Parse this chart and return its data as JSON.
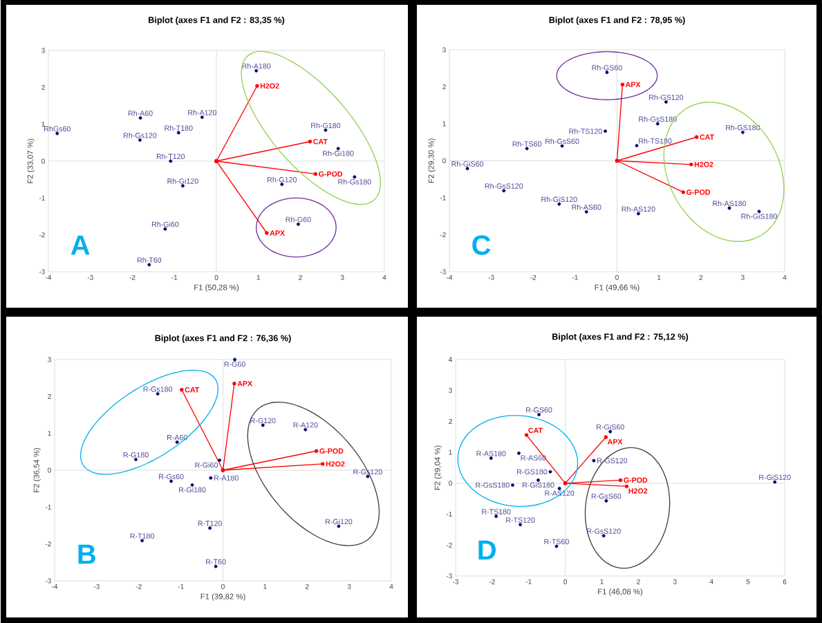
{
  "chart_data": [
    {
      "type": "scatter",
      "title": "Biplot (axes F1 and F2 : 83,35 %)",
      "xlabel": "F1 (50,28 %)",
      "ylabel": "F2 (33,07 %)",
      "annotations": [
        "A"
      ],
      "xlim": [
        -4,
        4
      ],
      "ylim": [
        -3,
        3
      ],
      "xticks": [
        -4,
        -3,
        -2,
        -1,
        0,
        1,
        2,
        3,
        4
      ],
      "yticks": [
        -3,
        -2,
        -1,
        0,
        1,
        2,
        3
      ],
      "marker": "circle",
      "series": [
        {
          "type": "scatter",
          "color": "#000066",
          "x": [
            -3.79,
            -1.81,
            -1.82,
            -0.34,
            -0.9,
            -1.09,
            -0.8,
            -1.22,
            -1.6,
            0.95,
            2.6,
            2.9,
            3.29,
            1.56,
            1.95
          ],
          "values": [
            0.75,
            1.17,
            0.57,
            1.19,
            0.77,
            0.0,
            -0.67,
            -1.84,
            -2.81,
            2.45,
            0.84,
            0.34,
            -0.43,
            -0.63,
            -1.71
          ],
          "value_labels": [
            "RhGs60",
            "Rh-A60",
            "Rh-Gs120",
            "Rh-A120",
            "Rh-T180",
            "Rh-T120",
            "Rh-Gi120",
            "Rh-Gi60",
            "Rh-T60",
            "Rh-A180",
            "Rh-G180",
            "Rh-Gi180",
            "Rh-Gs180",
            "Rh-G120",
            "Rh-G60"
          ]
        },
        {
          "type": "line",
          "color": "#ff0000",
          "x": [
            0,
            0.97
          ],
          "values": [
            0,
            2.04
          ],
          "value_labels": [
            null,
            "H2O2"
          ]
        },
        {
          "type": "line",
          "color": "#ff0000",
          "x": [
            0,
            2.23
          ],
          "values": [
            0,
            0.53
          ],
          "value_labels": [
            null,
            "CAT"
          ]
        },
        {
          "type": "line",
          "color": "#ff0000",
          "x": [
            0,
            2.36
          ],
          "values": [
            0,
            -0.35
          ],
          "value_labels": [
            null,
            "G-POD"
          ]
        },
        {
          "type": "line",
          "color": "#ff0000",
          "x": [
            0,
            1.2
          ],
          "values": [
            0,
            -1.95
          ],
          "value_labels": [
            null,
            "APX"
          ]
        }
      ]
    },
    {
      "type": "scatter",
      "title": "Biplot (axes F1 and F2 : 78,95 %)",
      "xlabel": "F1 (49,66 %)",
      "ylabel": "F2 (29,30 %)",
      "annotations": [
        "C"
      ],
      "xlim": [
        -4,
        4
      ],
      "ylim": [
        -3,
        3
      ],
      "xticks": [
        -4,
        -3,
        -2,
        -1,
        0,
        1,
        2,
        3,
        4
      ],
      "yticks": [
        -3,
        -2,
        -1,
        0,
        1,
        2,
        3
      ],
      "marker": "circle",
      "series": [
        {
          "type": "scatter",
          "color": "#000066",
          "x": [
            -0.24,
            1.17,
            -0.28,
            0.97,
            0.47,
            3.0,
            -1.31,
            -2.15,
            -3.57,
            -2.7,
            -1.38,
            -0.73,
            0.51,
            2.68,
            3.39
          ],
          "values": [
            2.39,
            1.59,
            0.8,
            1.0,
            0.41,
            0.77,
            0.4,
            0.33,
            -0.21,
            -0.81,
            -1.17,
            -1.38,
            -1.43,
            -1.28,
            -1.37
          ],
          "value_labels": [
            "Rh-GS60",
            "Rh-GS120",
            "Rh-TS120",
            "Rh-GsS180",
            "Rh-TS180",
            "Rh-GS180",
            "Rh-GsS60",
            "Rh-TS60",
            "Rh-GiS60",
            "Rh-GsS120",
            "Rh-GiS120",
            "Rh-AS60",
            "Rh-AS120",
            "Rh-AS180",
            "Rh-GiS180"
          ]
        },
        {
          "type": "line",
          "color": "#ff0000",
          "x": [
            0,
            0.13
          ],
          "values": [
            0,
            2.06
          ],
          "value_labels": [
            null,
            "APX"
          ]
        },
        {
          "type": "line",
          "color": "#ff0000",
          "x": [
            0,
            1.9
          ],
          "values": [
            0,
            0.64
          ],
          "value_labels": [
            null,
            "CAT"
          ]
        },
        {
          "type": "line",
          "color": "#ff0000",
          "x": [
            0,
            1.77
          ],
          "values": [
            0,
            -0.1
          ],
          "value_labels": [
            null,
            "H2O2"
          ]
        },
        {
          "type": "line",
          "color": "#ff0000",
          "x": [
            0,
            1.58
          ],
          "values": [
            0,
            -0.85
          ],
          "value_labels": [
            null,
            "G-POD"
          ]
        }
      ]
    },
    {
      "type": "scatter",
      "title": "Biplot (axes F1 and F2 : 76,36 %)",
      "xlabel": "F1 (39,82 %)",
      "ylabel": "F2 (36,54 %)",
      "annotations": [
        "B"
      ],
      "xlim": [
        -4,
        4
      ],
      "ylim": [
        -3,
        3
      ],
      "xticks": [
        -4,
        -3,
        -2,
        -1,
        0,
        1,
        2,
        3,
        4
      ],
      "yticks": [
        -3,
        -2,
        -1,
        0,
        1,
        2,
        3
      ],
      "marker": "circle",
      "series": [
        {
          "type": "scatter",
          "color": "#000066",
          "x": [
            0.28,
            -1.55,
            -1.09,
            -2.07,
            -0.08,
            -1.23,
            -0.73,
            -0.29,
            0.95,
            1.96,
            3.44,
            2.75,
            -0.31,
            -1.92,
            -0.17
          ],
          "values": [
            3.0,
            2.07,
            0.76,
            0.29,
            0.27,
            -0.3,
            -0.4,
            -0.21,
            1.22,
            1.1,
            -0.17,
            -1.52,
            -1.57,
            -1.91,
            -2.61
          ],
          "value_labels": [
            "R-G60",
            "R-Gs180",
            "R-A60",
            "R-G180",
            "R-Gi60",
            "R-Gs60",
            "R-Gi180",
            "R-A180",
            "R-G120",
            "R-A120",
            "R-Gs120",
            "R-Gi120",
            "R-T120",
            "R-T180",
            "R-T60"
          ]
        },
        {
          "type": "line",
          "color": "#ff0000",
          "x": [
            0,
            -0.98
          ],
          "values": [
            0,
            2.18
          ],
          "value_labels": [
            null,
            "CAT"
          ]
        },
        {
          "type": "line",
          "color": "#ff0000",
          "x": [
            0,
            0.27
          ],
          "values": [
            0,
            2.35
          ],
          "value_labels": [
            null,
            "APX"
          ]
        },
        {
          "type": "line",
          "color": "#ff0000",
          "x": [
            0,
            2.22
          ],
          "values": [
            0,
            0.52
          ],
          "value_labels": [
            null,
            "G-POD"
          ]
        },
        {
          "type": "line",
          "color": "#ff0000",
          "x": [
            0,
            2.37
          ],
          "values": [
            0,
            0.17
          ],
          "value_labels": [
            null,
            "H2O2"
          ]
        }
      ]
    },
    {
      "type": "scatter",
      "title": "Biplot (axes F1 and F2 : 75,12 %)",
      "xlabel": "F1 (46,08 %)",
      "ylabel": "F2 (29,04 %)",
      "annotations": [
        "D"
      ],
      "xlim": [
        -3,
        6
      ],
      "ylim": [
        -3,
        4
      ],
      "xticks": [
        -3,
        -2,
        -1,
        0,
        1,
        2,
        3,
        4,
        5,
        6
      ],
      "yticks": [
        -3,
        -2,
        -1,
        0,
        1,
        2,
        3,
        4
      ],
      "marker": "circle",
      "series": [
        {
          "type": "scatter",
          "color": "#000066",
          "x": [
            -0.72,
            -2.03,
            -1.27,
            -0.41,
            -0.74,
            -1.44,
            -0.16,
            -1.89,
            -1.23,
            -0.24,
            1.23,
            0.78,
            1.12,
            1.05,
            5.73
          ],
          "values": [
            2.22,
            0.81,
            0.97,
            0.37,
            0.1,
            -0.06,
            -0.17,
            -1.07,
            -1.34,
            -2.04,
            1.67,
            0.73,
            -0.57,
            -1.7,
            0.04
          ],
          "value_labels": [
            "R-GS60",
            "R-AS180",
            "R-AS60",
            "R-GS180",
            "R-GiS180",
            "R-GsS180",
            "R-AS120",
            "R-TS180",
            "R-TS120",
            "R-TS60",
            "R-GiS60",
            "R-GS120",
            "R-GsS60",
            "R-GsS120",
            "R-GiS120"
          ]
        },
        {
          "type": "line",
          "color": "#ff0000",
          "x": [
            0,
            -1.06
          ],
          "values": [
            0,
            1.56
          ],
          "value_labels": [
            null,
            "CAT"
          ]
        },
        {
          "type": "line",
          "color": "#ff0000",
          "x": [
            0,
            1.11
          ],
          "values": [
            0,
            1.49
          ],
          "value_labels": [
            null,
            "APX"
          ]
        },
        {
          "type": "line",
          "color": "#ff0000",
          "x": [
            0,
            1.51
          ],
          "values": [
            0,
            0.1
          ],
          "value_labels": [
            null,
            "G-POD"
          ]
        },
        {
          "type": "line",
          "color": "#ff0000",
          "x": [
            0,
            1.68
          ],
          "values": [
            0,
            -0.1
          ],
          "value_labels": [
            null,
            "H2O2"
          ]
        }
      ]
    }
  ]
}
